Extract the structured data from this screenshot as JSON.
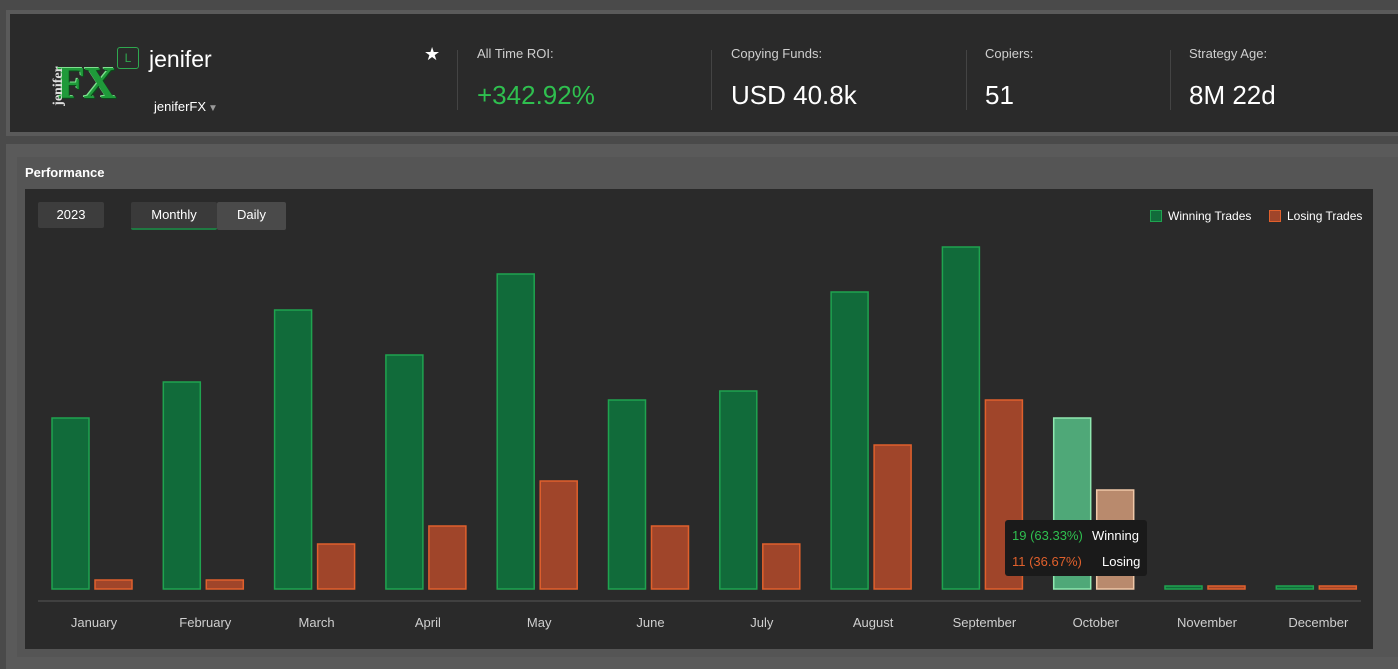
{
  "header": {
    "logo": {
      "small": "jenifer",
      "big": "FX"
    },
    "badge": "L",
    "name": "jenifer",
    "account": "jeniferFX",
    "stats": [
      {
        "label": "All Time ROI:",
        "value": "+342.92%"
      },
      {
        "label": "Copying Funds:",
        "value": "USD 40.8k"
      },
      {
        "label": "Copiers:",
        "value": "51"
      },
      {
        "label": "Strategy Age:",
        "value": "8M 22d"
      }
    ]
  },
  "performance": {
    "title": "Performance",
    "year": "2023",
    "tabs": {
      "monthly": "Monthly",
      "daily": "Daily"
    },
    "legend": {
      "winning": "Winning Trades",
      "losing": "Losing Trades"
    },
    "colors": {
      "winning": "#116b3a",
      "winning_border": "#1fa34f",
      "losing": "#a0452a",
      "losing_border": "#e0602c",
      "highlight_win": "#4fa878",
      "highlight_lose": "#b98a6d"
    },
    "tooltip": {
      "winning_value": "19 (63.33%)",
      "winning_label": "Winning",
      "losing_value": "11 (36.67%)",
      "losing_label": "Losing"
    }
  },
  "chart_data": {
    "type": "bar",
    "categories": [
      "January",
      "February",
      "March",
      "April",
      "May",
      "June",
      "July",
      "August",
      "September",
      "October",
      "November",
      "December"
    ],
    "series": [
      {
        "name": "Winning Trades",
        "values": [
          19,
          23,
          31,
          26,
          35,
          21,
          22,
          33,
          38,
          19,
          0,
          0
        ]
      },
      {
        "name": "Losing Trades",
        "values": [
          1,
          1,
          5,
          7,
          12,
          7,
          5,
          16,
          21,
          11,
          0,
          0
        ]
      }
    ],
    "highlight_category": "October",
    "ylim": [
      0,
      40
    ],
    "legend": "top-right",
    "grid": false
  }
}
